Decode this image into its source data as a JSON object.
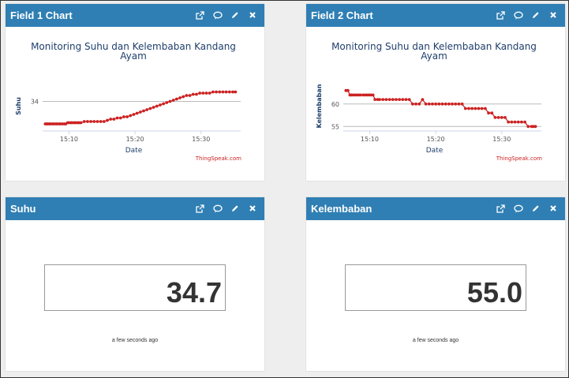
{
  "panels": {
    "field1": {
      "title": "Field 1 Chart",
      "chart_data": {
        "type": "line",
        "title": "Monitoring Suhu dan Kelembaban Kandang Ayam",
        "title_lines": [
          "Monitoring Suhu dan Kelembaban Kandang",
          "Ayam"
        ],
        "xlabel": "Date",
        "ylabel": "Suhu",
        "xticks": [
          "15:10",
          "15:20",
          "15:30"
        ],
        "yticks": [
          {
            "value": 34,
            "label": "34"
          }
        ],
        "xlim": [
          15.06,
          15.36
        ],
        "ylim": [
          31.5,
          35.3
        ],
        "series_color": "#cc2222",
        "series": [
          {
            "x": [
              15.064,
              15.066,
              15.068,
              15.07,
              15.072,
              15.075,
              15.077,
              15.08,
              15.082,
              15.085,
              15.087,
              15.09,
              15.093,
              15.095,
              15.098,
              15.1,
              15.103,
              15.105,
              15.108,
              15.11,
              15.113,
              15.115,
              15.118,
              15.123,
              15.128,
              15.133,
              15.138,
              15.143,
              15.148,
              15.153,
              15.158,
              15.163,
              15.168,
              15.173,
              15.178,
              15.183,
              15.188,
              15.193,
              15.198,
              15.203,
              15.208,
              15.213,
              15.218,
              15.223,
              15.228,
              15.233,
              15.238,
              15.243,
              15.248,
              15.253,
              15.258,
              15.263,
              15.268,
              15.273,
              15.278,
              15.283,
              15.288,
              15.293,
              15.298,
              15.303,
              15.308,
              15.313,
              15.318,
              15.323,
              15.328,
              15.333,
              15.338,
              15.343,
              15.348,
              15.352
            ],
            "y": [
              32.1,
              32.1,
              32.1,
              32.1,
              32.1,
              32.1,
              32.1,
              32.1,
              32.1,
              32.1,
              32.1,
              32.1,
              32.1,
              32.1,
              32.2,
              32.2,
              32.2,
              32.2,
              32.2,
              32.2,
              32.2,
              32.2,
              32.2,
              32.3,
              32.3,
              32.3,
              32.3,
              32.3,
              32.3,
              32.3,
              32.4,
              32.5,
              32.5,
              32.6,
              32.6,
              32.7,
              32.7,
              32.8,
              32.9,
              33.0,
              33.1,
              33.2,
              33.3,
              33.4,
              33.5,
              33.6,
              33.7,
              33.8,
              33.9,
              34.0,
              34.1,
              34.2,
              34.3,
              34.4,
              34.5,
              34.5,
              34.6,
              34.6,
              34.7,
              34.7,
              34.7,
              34.7,
              34.8,
              34.8,
              34.8,
              34.8,
              34.8,
              34.8,
              34.8,
              34.8
            ]
          }
        ],
        "credit": "ThingSpeak.com"
      }
    },
    "field2": {
      "title": "Field 2 Chart",
      "chart_data": {
        "type": "line",
        "title": "Monitoring Suhu dan Kelembaban Kandang Ayam",
        "title_lines": [
          "Monitoring Suhu dan Kelembaban Kandang",
          "Ayam"
        ],
        "xlabel": "Date",
        "ylabel": "Kelembaban",
        "xticks": [
          "15:10",
          "15:20",
          "15:30"
        ],
        "yticks": [
          {
            "value": 60,
            "label": "60"
          },
          {
            "value": 55,
            "label": "55"
          }
        ],
        "xlim": [
          15.06,
          15.36
        ],
        "ylim": [
          54,
          64
        ],
        "series_color": "#cc2222",
        "series": [
          {
            "x": [
              15.064,
              15.067,
              15.07,
              15.072,
              15.074,
              15.077,
              15.08,
              15.083,
              15.086,
              15.09,
              15.093,
              15.096,
              15.099,
              15.102,
              15.105,
              15.108,
              15.112,
              15.115,
              15.12,
              15.125,
              15.13,
              15.135,
              15.14,
              15.145,
              15.15,
              15.155,
              15.16,
              15.165,
              15.17,
              15.175,
              15.18,
              15.185,
              15.19,
              15.195,
              15.2,
              15.205,
              15.21,
              15.215,
              15.22,
              15.225,
              15.23,
              15.235,
              15.24,
              15.245,
              15.25,
              15.255,
              15.26,
              15.265,
              15.27,
              15.275,
              15.28,
              15.285,
              15.29,
              15.295,
              15.3,
              15.305,
              15.31,
              15.315,
              15.32,
              15.325,
              15.33,
              15.335,
              15.34,
              15.345,
              15.348,
              15.351
            ],
            "y": [
              63,
              63,
              62,
              62,
              62,
              62,
              62,
              62,
              62,
              62,
              62,
              62,
              62,
              62,
              62,
              61,
              61,
              61,
              61,
              61,
              61,
              61,
              61,
              61,
              61,
              61,
              61,
              60,
              60,
              60,
              61,
              60,
              60,
              60,
              60,
              60,
              60,
              60,
              60,
              60,
              60,
              60,
              60,
              59,
              59,
              59,
              59,
              59,
              59,
              59,
              58,
              58,
              57,
              57,
              57,
              57,
              56,
              56,
              56,
              56,
              56,
              56,
              55,
              55,
              55,
              55
            ]
          }
        ],
        "credit": "ThingSpeak.com"
      }
    },
    "suhu": {
      "title": "Suhu",
      "value": "34.7",
      "updated": "a few seconds ago"
    },
    "kelembaban": {
      "title": "Kelembaban",
      "value": "55.0",
      "updated": "a few seconds ago"
    }
  },
  "icons": [
    "external-link-icon",
    "comment-icon",
    "pencil-icon",
    "close-icon"
  ],
  "colors": {
    "header": "#2f7fb4",
    "line": "#cc2222",
    "title": "#1f3e6b"
  }
}
